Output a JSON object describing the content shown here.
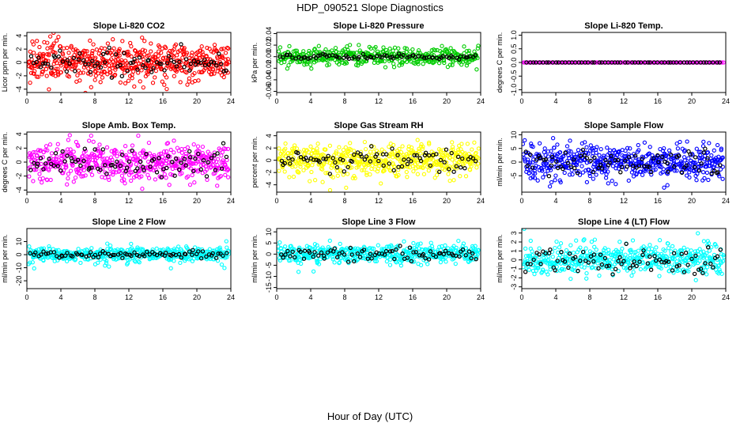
{
  "figure": {
    "title": "HDP_090521  Slope Diagnostics",
    "xlabel": "Hour of Day (UTC)"
  },
  "chart_data": [
    {
      "type": "scatter",
      "title": "Slope Li-820 CO2",
      "ylabel": "Licor ppm per min.",
      "color": "#ff0000",
      "xlim": [
        0,
        24
      ],
      "xticks": [
        0,
        4,
        8,
        12,
        16,
        20,
        24
      ],
      "ylim": [
        -4.5,
        4.5
      ],
      "yticks": [
        -4,
        -2,
        0,
        2,
        4
      ],
      "point_count": 560,
      "black_count": 80,
      "spread": 1.35,
      "black_spread": 1.0,
      "center": 0
    },
    {
      "type": "scatter",
      "title": "Slope Li-820 Pressure",
      "ylabel": "kPa per min.",
      "color": "#00cc00",
      "xlim": [
        0,
        24
      ],
      "xticks": [
        0,
        4,
        8,
        12,
        16,
        20,
        24
      ],
      "ylim": [
        -0.062,
        0.042
      ],
      "yticks": [
        -0.06,
        -0.04,
        -0.02,
        0.0,
        0.02,
        0.04
      ],
      "point_count": 420,
      "black_count": 80,
      "spread": 0.008,
      "black_spread": 0.002,
      "center": 0
    },
    {
      "type": "scatter",
      "title": "Slope Li-820 Temp.",
      "ylabel": "degrees C per min.",
      "color": "#ff00ff",
      "xlim": [
        0,
        24
      ],
      "xticks": [
        0,
        4,
        8,
        12,
        16,
        20,
        24
      ],
      "ylim": [
        -1.1,
        1.1
      ],
      "yticks": [
        -1.0,
        -0.5,
        0.0,
        0.5,
        1.0
      ],
      "point_count": 200,
      "black_count": 60,
      "spread": 0.0,
      "black_spread": 0.0,
      "center": 0
    },
    {
      "type": "scatter",
      "title": "Slope Amb. Box Temp.",
      "ylabel": "degrees C per min.",
      "color": "#ff00ff",
      "xlim": [
        0,
        24
      ],
      "xticks": [
        0,
        4,
        8,
        12,
        16,
        20,
        24
      ],
      "ylim": [
        -4.3,
        4.3
      ],
      "yticks": [
        -4,
        -2,
        0,
        2,
        4
      ],
      "point_count": 520,
      "black_count": 80,
      "spread": 1.3,
      "black_spread": 1.1,
      "center": 0
    },
    {
      "type": "scatter",
      "title": "Slope Gas Stream RH",
      "ylabel": "percent per min.",
      "color": "#ffff00",
      "xlim": [
        0,
        24
      ],
      "xticks": [
        0,
        4,
        8,
        12,
        16,
        20,
        24
      ],
      "ylim": [
        -5.2,
        4.6
      ],
      "yticks": [
        -4,
        -2,
        0,
        2,
        4
      ],
      "point_count": 520,
      "black_count": 80,
      "spread": 1.3,
      "black_spread": 1.0,
      "center": 0
    },
    {
      "type": "scatter",
      "title": "Slope Sample Flow",
      "ylabel": "ml/min per min.",
      "color": "#0000ff",
      "xlim": [
        0,
        24
      ],
      "xticks": [
        0,
        4,
        8,
        12,
        16,
        20,
        24
      ],
      "ylim": [
        -11,
        11
      ],
      "yticks": [
        -5,
        0,
        5,
        10
      ],
      "point_count": 520,
      "black_count": 80,
      "spread": 3.2,
      "black_spread": 2.6,
      "center": 0
    },
    {
      "type": "scatter",
      "title": "Slope Line 2 Flow",
      "ylabel": "ml/min per min.",
      "color": "#00ffff",
      "xlim": [
        0,
        24
      ],
      "xticks": [
        0,
        4,
        8,
        12,
        16,
        20,
        24
      ],
      "ylim": [
        -26,
        20
      ],
      "yticks": [
        -20,
        -10,
        0,
        10
      ],
      "point_count": 500,
      "black_count": 80,
      "spread": 2.8,
      "black_spread": 1.2,
      "center": 0
    },
    {
      "type": "scatter",
      "title": "Slope Line 3 Flow",
      "ylabel": "ml/min per min.",
      "color": "#00ffff",
      "xlim": [
        0,
        24
      ],
      "xticks": [
        0,
        4,
        8,
        12,
        16,
        20,
        24
      ],
      "ylim": [
        -15.5,
        11.5
      ],
      "yticks": [
        -15,
        -10,
        -5,
        0,
        5,
        10
      ],
      "point_count": 500,
      "black_count": 80,
      "spread": 2.0,
      "black_spread": 1.6,
      "center": 0
    },
    {
      "type": "scatter",
      "title": "Slope Line 4 (LT) Flow",
      "ylabel": "ml/min per min.",
      "color": "#00ffff",
      "xlim": [
        0,
        24
      ],
      "xticks": [
        0,
        4,
        8,
        12,
        16,
        20,
        24
      ],
      "ylim": [
        -3.2,
        3.5
      ],
      "yticks": [
        -3,
        -2,
        -1,
        0,
        1,
        2,
        3
      ],
      "point_count": 500,
      "black_count": 80,
      "spread": 0.85,
      "black_spread": 0.7,
      "center": 0
    }
  ]
}
